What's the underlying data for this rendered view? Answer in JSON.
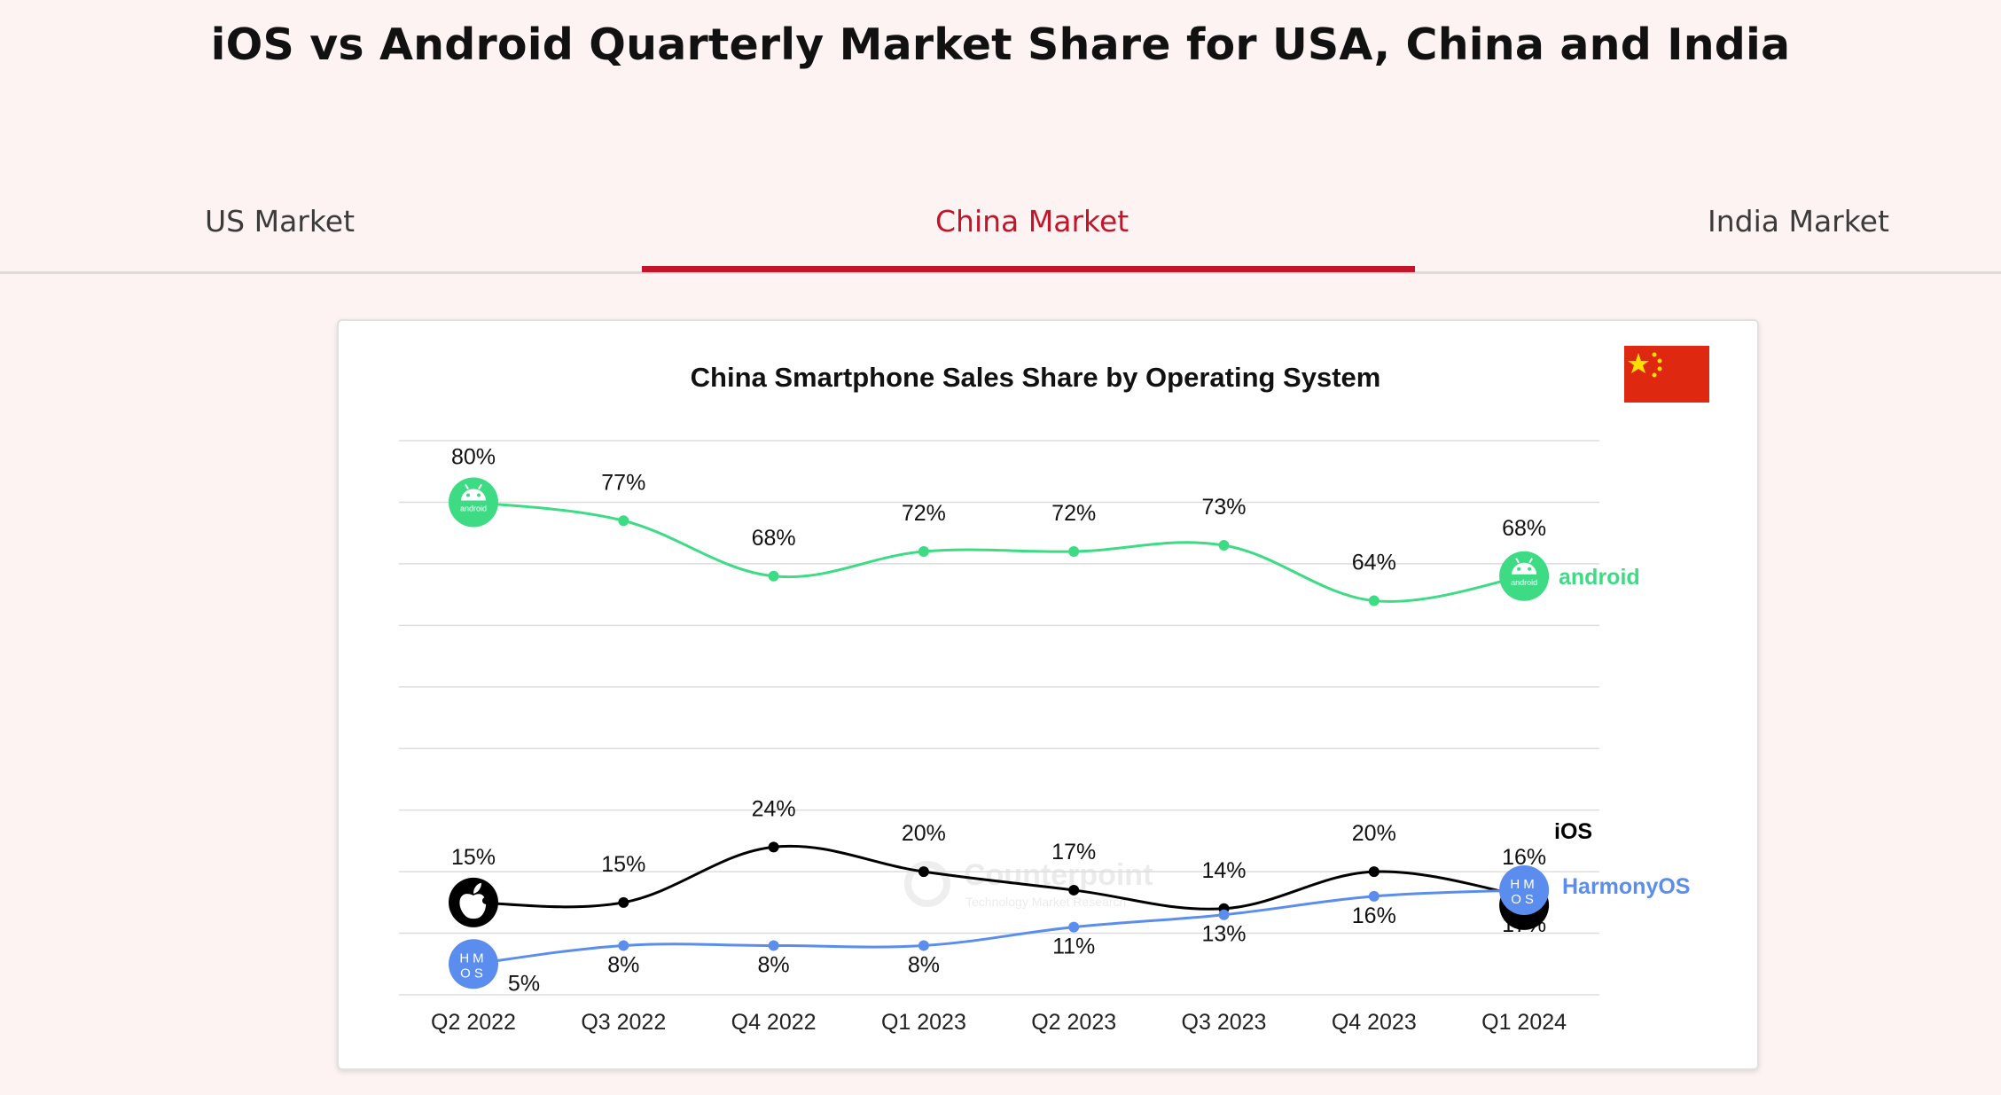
{
  "page": {
    "title": "iOS vs Android Quarterly Market Share for USA, China and India"
  },
  "tabs": [
    {
      "label": "US Market",
      "active": false
    },
    {
      "label": "China Market",
      "active": true
    },
    {
      "label": "India Market",
      "active": false
    }
  ],
  "colors": {
    "accent": "#c4142a",
    "android": "#3ddc84",
    "ios": "#000000",
    "harmonyos": "#5b8def",
    "flag_red": "#de2910",
    "flag_star": "#ffde00"
  },
  "watermark": {
    "name": "Counterpoint",
    "sub": "Technology Market Research"
  },
  "chart_data": {
    "type": "line",
    "title": "China Smartphone Sales Share by Operating System",
    "categories": [
      "Q2 2022",
      "Q3 2022",
      "Q4 2022",
      "Q1 2023",
      "Q2 2023",
      "Q3 2023",
      "Q4 2023",
      "Q1 2024"
    ],
    "ylim": [
      0,
      90
    ],
    "grid": true,
    "series": [
      {
        "name": "android",
        "color": "#3ddc84",
        "values": [
          80,
          77,
          68,
          72,
          72,
          73,
          64,
          68
        ],
        "labels": [
          "80%",
          "77%",
          "68%",
          "72%",
          "72%",
          "73%",
          "64%",
          "68%"
        ],
        "icon": "android-icon"
      },
      {
        "name": "iOS",
        "color": "#000000",
        "values": [
          15,
          15,
          24,
          20,
          17,
          14,
          20,
          16
        ],
        "labels": [
          "15%",
          "15%",
          "24%",
          "20%",
          "17%",
          "14%",
          "20%",
          "16%"
        ],
        "icon": "apple-icon"
      },
      {
        "name": "HarmonyOS",
        "color": "#5b8def",
        "values": [
          5,
          8,
          8,
          8,
          11,
          13,
          16,
          17
        ],
        "labels": [
          "5%",
          "8%",
          "8%",
          "8%",
          "11%",
          "13%",
          "16%",
          "17%"
        ],
        "icon": "harmonyos-icon"
      }
    ]
  }
}
